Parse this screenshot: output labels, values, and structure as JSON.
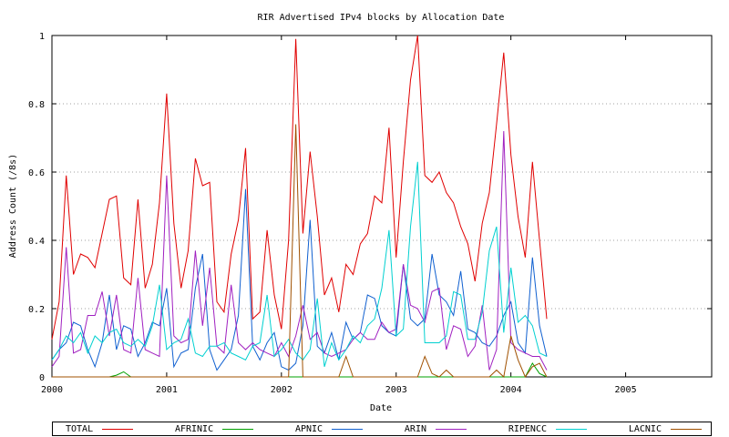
{
  "chart_data": {
    "type": "line",
    "title": "RIR Advertised  IPv4 blocks by Allocation Date",
    "xlabel": "Date",
    "ylabel": "Address Count (/8s)",
    "xlim": [
      2000.0,
      2005.75
    ],
    "ylim": [
      0,
      1
    ],
    "x_ticks": [
      2000,
      2001,
      2002,
      2003,
      2004,
      2005
    ],
    "y_ticks": [
      0,
      0.2,
      0.4,
      0.6,
      0.8,
      1
    ],
    "y_tick_labels": [
      "0",
      "0.2",
      "0.4",
      "0.6",
      "0.8",
      "1"
    ],
    "grid": "horizontal dotted",
    "legend_position": "bottom",
    "x_step": 0.0625,
    "series": [
      {
        "name": "TOTAL",
        "color": "#e00000",
        "values": [
          0.11,
          0.22,
          0.59,
          0.3,
          0.36,
          0.35,
          0.32,
          0.42,
          0.52,
          0.53,
          0.29,
          0.27,
          0.52,
          0.26,
          0.33,
          0.51,
          0.83,
          0.45,
          0.26,
          0.37,
          0.64,
          0.56,
          0.57,
          0.22,
          0.19,
          0.36,
          0.46,
          0.67,
          0.17,
          0.19,
          0.43,
          0.24,
          0.14,
          0.4,
          0.99,
          0.42,
          0.66,
          0.47,
          0.24,
          0.29,
          0.19,
          0.33,
          0.3,
          0.39,
          0.42,
          0.53,
          0.51,
          0.73,
          0.35,
          0.63,
          0.87,
          1.0,
          0.59,
          0.57,
          0.6,
          0.54,
          0.51,
          0.44,
          0.39,
          0.28,
          0.45,
          0.54,
          0.74,
          0.95,
          0.65,
          0.47,
          0.35,
          0.63,
          0.4,
          0.17
        ]
      },
      {
        "name": "AFRINIC",
        "color": "#00a000",
        "values": [
          0,
          0,
          0,
          0,
          0,
          0,
          0,
          0,
          0,
          0.005,
          0.015,
          0,
          0,
          0,
          0,
          0,
          0,
          0,
          0,
          0,
          0,
          0,
          0,
          0,
          0,
          0,
          0,
          0,
          0,
          0,
          0,
          0,
          0,
          0,
          0,
          0,
          0,
          0,
          0,
          0,
          0,
          0,
          0,
          0,
          0,
          0,
          0,
          0,
          0,
          0,
          0,
          0,
          0,
          0,
          0,
          0,
          0,
          0,
          0,
          0,
          0,
          0,
          0,
          0,
          0,
          0,
          0,
          0.04,
          0.01,
          0
        ]
      },
      {
        "name": "APNIC",
        "color": "#1060d0",
        "values": [
          0.05,
          0.08,
          0.1,
          0.16,
          0.15,
          0.08,
          0.03,
          0.1,
          0.24,
          0.08,
          0.15,
          0.14,
          0.06,
          0.1,
          0.16,
          0.15,
          0.26,
          0.03,
          0.07,
          0.08,
          0.26,
          0.36,
          0.08,
          0.02,
          0.05,
          0.08,
          0.18,
          0.55,
          0.09,
          0.05,
          0.1,
          0.13,
          0.03,
          0.02,
          0.04,
          0.15,
          0.46,
          0.09,
          0.07,
          0.13,
          0.05,
          0.16,
          0.11,
          0.13,
          0.24,
          0.23,
          0.15,
          0.13,
          0.12,
          0.33,
          0.17,
          0.15,
          0.17,
          0.36,
          0.24,
          0.22,
          0.18,
          0.31,
          0.14,
          0.13,
          0.1,
          0.09,
          0.12,
          0.18,
          0.22,
          0.1,
          0.07,
          0.35,
          0.15,
          0.06
        ]
      },
      {
        "name": "ARIN",
        "color": "#a020c0",
        "values": [
          0.03,
          0.06,
          0.38,
          0.07,
          0.08,
          0.18,
          0.18,
          0.25,
          0.12,
          0.24,
          0.08,
          0.07,
          0.29,
          0.08,
          0.07,
          0.06,
          0.59,
          0.12,
          0.1,
          0.11,
          0.37,
          0.15,
          0.32,
          0.09,
          0.07,
          0.27,
          0.1,
          0.08,
          0.1,
          0.08,
          0.07,
          0.06,
          0.1,
          0.06,
          0.12,
          0.21,
          0.11,
          0.13,
          0.07,
          0.06,
          0.07,
          0.08,
          0.11,
          0.13,
          0.11,
          0.11,
          0.16,
          0.13,
          0.14,
          0.33,
          0.21,
          0.2,
          0.16,
          0.25,
          0.26,
          0.08,
          0.15,
          0.14,
          0.06,
          0.09,
          0.21,
          0.02,
          0.08,
          0.72,
          0.1,
          0.08,
          0.07,
          0.06,
          0.06,
          0.02
        ]
      },
      {
        "name": "RIPENCC",
        "color": "#00d0d0",
        "values": [
          0.05,
          0.08,
          0.12,
          0.1,
          0.13,
          0.07,
          0.12,
          0.1,
          0.13,
          0.14,
          0.1,
          0.09,
          0.11,
          0.09,
          0.15,
          0.27,
          0.08,
          0.1,
          0.11,
          0.17,
          0.07,
          0.06,
          0.09,
          0.09,
          0.1,
          0.07,
          0.06,
          0.05,
          0.09,
          0.1,
          0.24,
          0.06,
          0.08,
          0.11,
          0.07,
          0.05,
          0.08,
          0.23,
          0.03,
          0.1,
          0.05,
          0.08,
          0.12,
          0.1,
          0.15,
          0.17,
          0.26,
          0.43,
          0.12,
          0.14,
          0.44,
          0.63,
          0.1,
          0.1,
          0.1,
          0.12,
          0.25,
          0.24,
          0.11,
          0.11,
          0.19,
          0.37,
          0.44,
          0.13,
          0.32,
          0.16,
          0.18,
          0.15,
          0.07,
          0.06
        ]
      },
      {
        "name": "LACNIC",
        "color": "#a05000",
        "values": [
          0,
          0,
          0,
          0,
          0,
          0,
          0,
          0,
          0,
          0,
          0,
          0,
          0,
          0,
          0,
          0,
          0,
          0,
          0,
          0,
          0,
          0,
          0,
          0,
          0,
          0,
          0,
          0,
          0,
          0,
          0,
          0,
          0,
          0,
          0.74,
          0,
          0,
          0,
          0,
          0,
          0,
          0.06,
          0,
          0,
          0,
          0,
          0,
          0,
          0,
          0,
          0,
          0,
          0.06,
          0.01,
          0,
          0.02,
          0,
          0,
          0,
          0,
          0,
          0,
          0.02,
          0,
          0.12,
          0.05,
          0,
          0.03,
          0.04,
          0
        ]
      }
    ]
  }
}
